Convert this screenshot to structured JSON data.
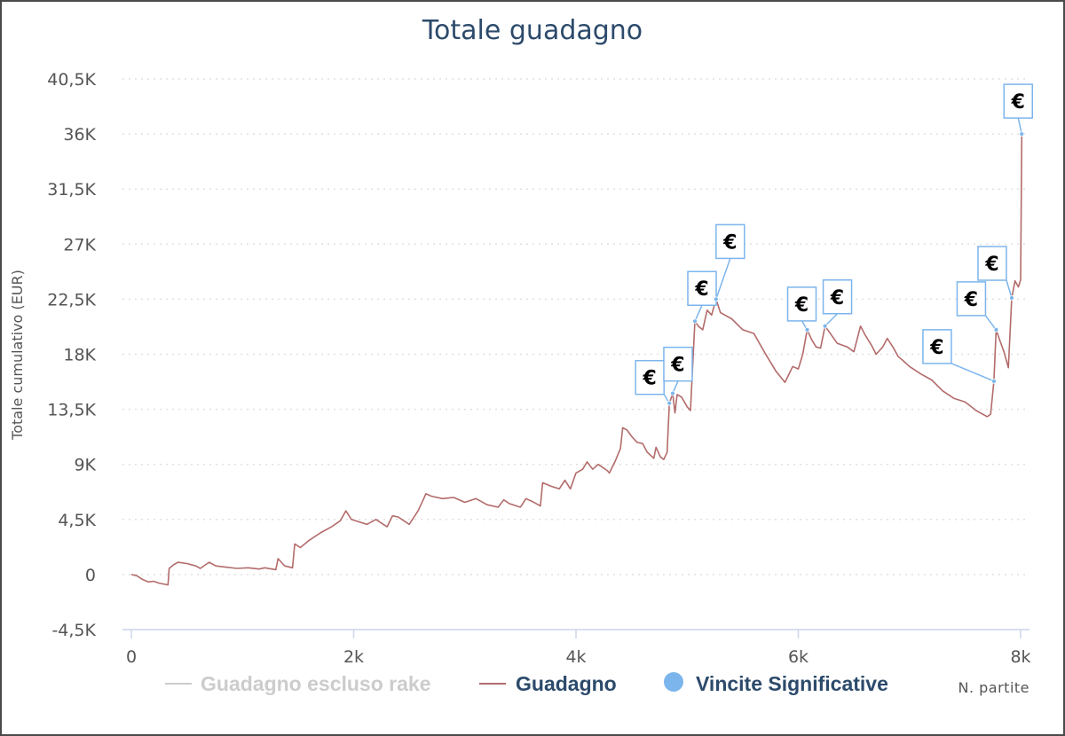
{
  "chart_data": {
    "type": "line",
    "title": "Totale guadagno",
    "xlabel": "N. partite",
    "ylabel": "Totale cumulativo (EUR)",
    "xlim": [
      0,
      8000
    ],
    "ylim": [
      -4500,
      40500
    ],
    "x_ticks": [
      0,
      2000,
      4000,
      6000,
      8000
    ],
    "x_tick_labels": [
      "0",
      "2k",
      "4k",
      "6k",
      "8k"
    ],
    "y_ticks": [
      -4500,
      0,
      4500,
      9000,
      13500,
      18000,
      22500,
      27000,
      31500,
      36000,
      40500
    ],
    "y_tick_labels": [
      "-4,5K",
      "0",
      "4,5K",
      "9K",
      "13,5K",
      "18K",
      "22,5K",
      "27K",
      "31,5K",
      "36K",
      "40,5K"
    ],
    "grid": true,
    "legend_position": "bottom-center",
    "legend": [
      {
        "name": "Guadagno escluso rake",
        "color": "#cccccc",
        "symbol": "line",
        "hidden": true
      },
      {
        "name": "Guadagno",
        "color": "#b36b6b",
        "symbol": "line"
      },
      {
        "name": "Vincite Significative",
        "color": "#7cb5ec",
        "symbol": "circle"
      }
    ],
    "series": [
      {
        "name": "Guadagno",
        "color": "#b36b6b",
        "points": [
          [
            0,
            0
          ],
          [
            50,
            -100
          ],
          [
            100,
            -400
          ],
          [
            150,
            -600
          ],
          [
            200,
            -550
          ],
          [
            250,
            -700
          ],
          [
            330,
            -850
          ],
          [
            340,
            500
          ],
          [
            380,
            800
          ],
          [
            420,
            1000
          ],
          [
            500,
            900
          ],
          [
            580,
            700
          ],
          [
            620,
            500
          ],
          [
            660,
            750
          ],
          [
            700,
            1000
          ],
          [
            760,
            700
          ],
          [
            850,
            600
          ],
          [
            950,
            500
          ],
          [
            1050,
            550
          ],
          [
            1150,
            450
          ],
          [
            1200,
            550
          ],
          [
            1300,
            400
          ],
          [
            1320,
            1300
          ],
          [
            1380,
            700
          ],
          [
            1450,
            550
          ],
          [
            1470,
            2500
          ],
          [
            1520,
            2200
          ],
          [
            1600,
            2800
          ],
          [
            1700,
            3400
          ],
          [
            1800,
            3900
          ],
          [
            1880,
            4400
          ],
          [
            1930,
            5200
          ],
          [
            1980,
            4500
          ],
          [
            2050,
            4300
          ],
          [
            2120,
            4100
          ],
          [
            2200,
            4500
          ],
          [
            2250,
            4200
          ],
          [
            2300,
            3900
          ],
          [
            2350,
            4800
          ],
          [
            2400,
            4700
          ],
          [
            2500,
            4100
          ],
          [
            2580,
            5200
          ],
          [
            2620,
            6000
          ],
          [
            2650,
            6600
          ],
          [
            2700,
            6400
          ],
          [
            2800,
            6200
          ],
          [
            2900,
            6300
          ],
          [
            3000,
            5900
          ],
          [
            3100,
            6200
          ],
          [
            3200,
            5700
          ],
          [
            3300,
            5500
          ],
          [
            3350,
            6100
          ],
          [
            3400,
            5800
          ],
          [
            3500,
            5500
          ],
          [
            3550,
            6200
          ],
          [
            3600,
            6000
          ],
          [
            3680,
            5600
          ],
          [
            3700,
            7500
          ],
          [
            3780,
            7200
          ],
          [
            3850,
            7000
          ],
          [
            3900,
            7700
          ],
          [
            3950,
            7000
          ],
          [
            4000,
            8300
          ],
          [
            4060,
            8600
          ],
          [
            4100,
            9200
          ],
          [
            4150,
            8600
          ],
          [
            4200,
            9000
          ],
          [
            4280,
            8500
          ],
          [
            4300,
            8300
          ],
          [
            4350,
            9200
          ],
          [
            4400,
            10300
          ],
          [
            4420,
            12000
          ],
          [
            4460,
            11800
          ],
          [
            4500,
            11300
          ],
          [
            4550,
            10800
          ],
          [
            4600,
            10700
          ],
          [
            4640,
            10000
          ],
          [
            4700,
            9500
          ],
          [
            4720,
            10400
          ],
          [
            4760,
            9600
          ],
          [
            4790,
            9400
          ],
          [
            4820,
            10000
          ],
          [
            4840,
            14000
          ],
          [
            4870,
            14800
          ],
          [
            4890,
            13200
          ],
          [
            4910,
            14700
          ],
          [
            4950,
            14500
          ],
          [
            5000,
            13700
          ],
          [
            5030,
            13400
          ],
          [
            5070,
            20700
          ],
          [
            5100,
            20300
          ],
          [
            5140,
            20000
          ],
          [
            5180,
            21600
          ],
          [
            5220,
            21200
          ],
          [
            5260,
            22500
          ],
          [
            5300,
            21400
          ],
          [
            5400,
            20900
          ],
          [
            5500,
            20000
          ],
          [
            5600,
            19700
          ],
          [
            5700,
            18100
          ],
          [
            5800,
            16600
          ],
          [
            5880,
            15700
          ],
          [
            5950,
            17000
          ],
          [
            6000,
            16800
          ],
          [
            6040,
            18000
          ],
          [
            6080,
            20000
          ],
          [
            6120,
            19200
          ],
          [
            6160,
            18600
          ],
          [
            6200,
            18500
          ],
          [
            6240,
            20300
          ],
          [
            6280,
            19800
          ],
          [
            6350,
            18900
          ],
          [
            6440,
            18600
          ],
          [
            6500,
            18200
          ],
          [
            6560,
            20300
          ],
          [
            6600,
            19600
          ],
          [
            6660,
            18700
          ],
          [
            6700,
            18000
          ],
          [
            6760,
            18600
          ],
          [
            6800,
            19300
          ],
          [
            6850,
            18600
          ],
          [
            6900,
            17800
          ],
          [
            6940,
            17500
          ],
          [
            7000,
            17000
          ],
          [
            7100,
            16400
          ],
          [
            7200,
            15900
          ],
          [
            7300,
            15000
          ],
          [
            7400,
            14400
          ],
          [
            7500,
            14100
          ],
          [
            7600,
            13400
          ],
          [
            7700,
            12900
          ],
          [
            7730,
            13100
          ],
          [
            7760,
            15800
          ],
          [
            7780,
            20000
          ],
          [
            7810,
            19200
          ],
          [
            7850,
            18200
          ],
          [
            7890,
            16900
          ],
          [
            7920,
            22600
          ],
          [
            7950,
            24000
          ],
          [
            7980,
            23500
          ],
          [
            8000,
            24100
          ],
          [
            8010,
            36000
          ]
        ]
      }
    ],
    "flags": [
      {
        "x": 4840,
        "y": 14000,
        "text": "€"
      },
      {
        "x": 4870,
        "y": 14800,
        "text": "€"
      },
      {
        "x": 5070,
        "y": 20700,
        "text": "€"
      },
      {
        "x": 5260,
        "y": 22500,
        "text": "€"
      },
      {
        "x": 6080,
        "y": 20000,
        "text": "€"
      },
      {
        "x": 6240,
        "y": 20300,
        "text": "€"
      },
      {
        "x": 7760,
        "y": 15800,
        "text": "€"
      },
      {
        "x": 7780,
        "y": 20000,
        "text": "€"
      },
      {
        "x": 7920,
        "y": 22600,
        "text": "€"
      },
      {
        "x": 8010,
        "y": 36000,
        "text": "€"
      }
    ]
  }
}
